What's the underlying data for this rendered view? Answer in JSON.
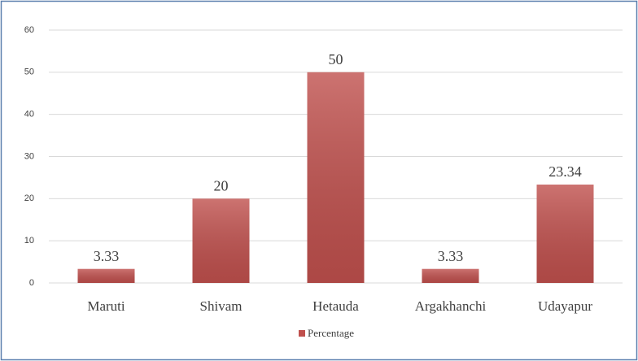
{
  "chart_data": {
    "type": "bar",
    "categories": [
      "Maruti",
      "Shivam",
      "Hetauda",
      "Argakhanchi",
      "Udayapur"
    ],
    "series": [
      {
        "name": "Percentage",
        "color": "#c0504d",
        "values": [
          3.33,
          20,
          50,
          3.33,
          23.34
        ]
      }
    ],
    "ylim": [
      0,
      60
    ],
    "yticks": [
      0,
      10,
      20,
      30,
      40,
      50,
      60
    ],
    "grid": true,
    "legend": "bottom"
  }
}
